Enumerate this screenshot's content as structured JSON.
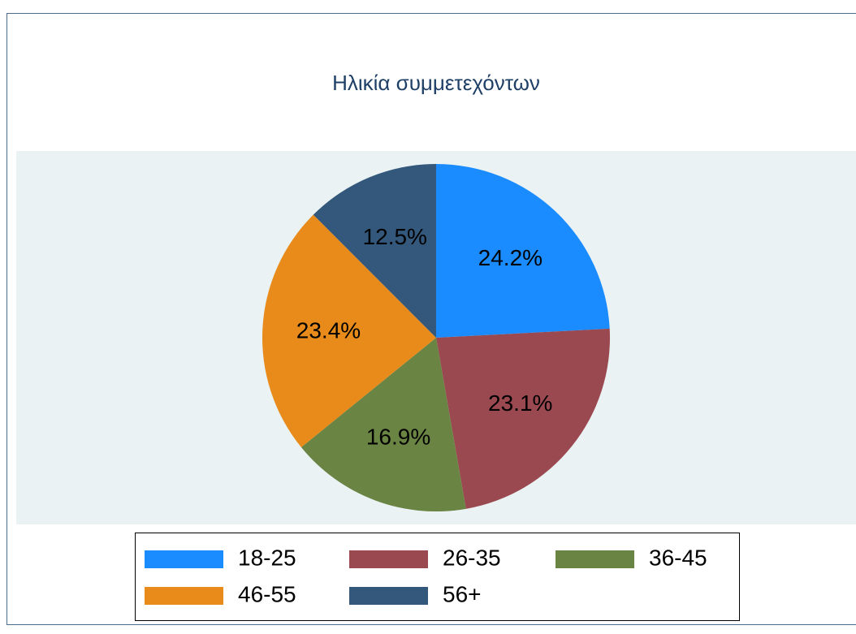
{
  "chart_data": {
    "type": "pie",
    "title": "Ηλικία συμμετεχόντων",
    "categories": [
      "18-25",
      "26-35",
      "36-45",
      "46-55",
      "56+"
    ],
    "values": [
      24.2,
      23.1,
      16.9,
      23.4,
      12.5
    ],
    "value_labels": [
      "24.2%",
      "23.1%",
      "16.9%",
      "23.4%",
      "12.5%"
    ],
    "colors": [
      "#1a8cff",
      "#9b4950",
      "#6a8443",
      "#e88b1a",
      "#34587b"
    ],
    "legend": "bottom"
  }
}
